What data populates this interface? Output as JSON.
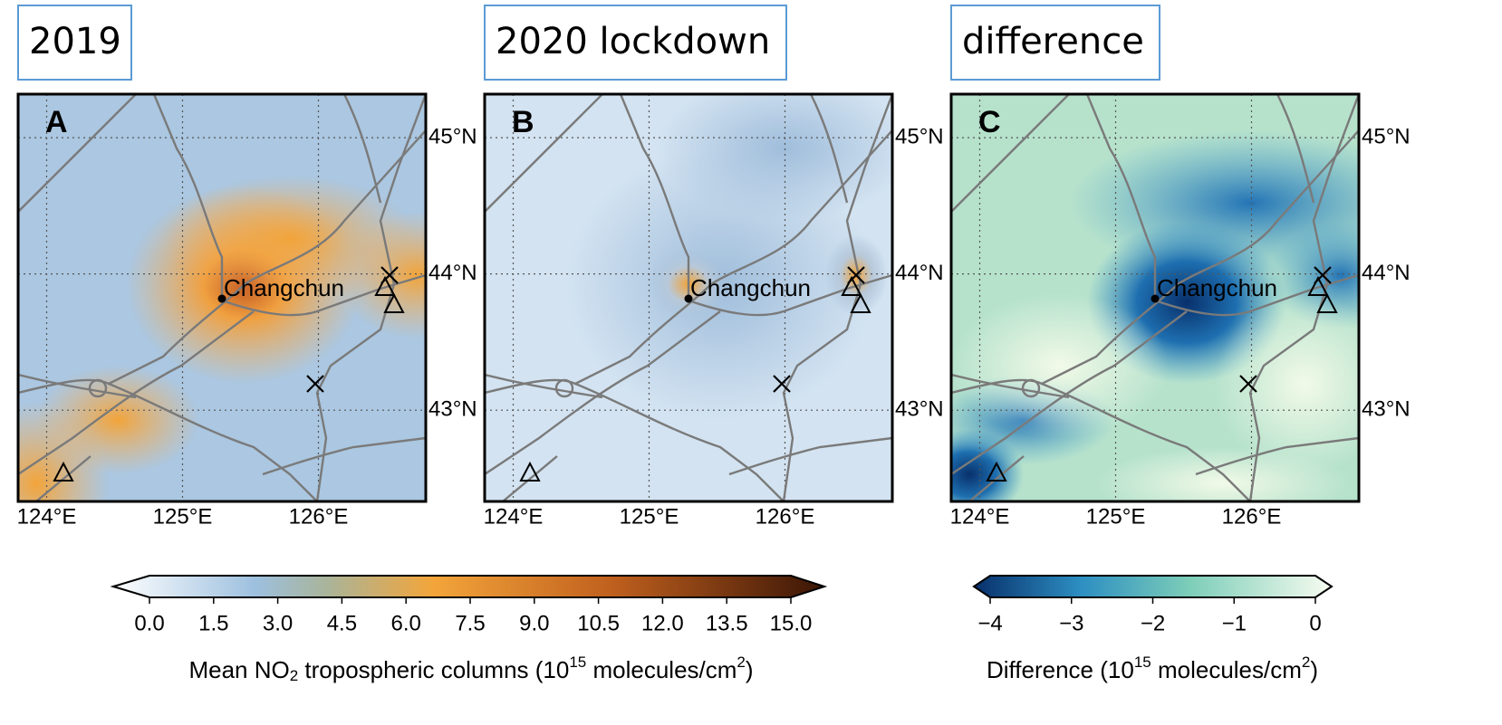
{
  "panels": [
    {
      "header": "2019",
      "letter": "A"
    },
    {
      "header": "2020 lockdown",
      "letter": "B"
    },
    {
      "header": "difference",
      "letter": "C"
    }
  ],
  "city": "Changchun",
  "lon": {
    "range": [
      123.79,
      126.79
    ],
    "ticks": [
      {
        "value": 124,
        "label": "124°E"
      },
      {
        "value": 125,
        "label": "125°E"
      },
      {
        "value": 126,
        "label": "126°E"
      }
    ]
  },
  "lat": {
    "range": [
      42.33,
      45.32
    ],
    "ticks": [
      {
        "value": 45,
        "label": "45°N"
      },
      {
        "value": 44,
        "label": "44°N"
      },
      {
        "value": 43,
        "label": "43°N"
      }
    ]
  },
  "colorbars": [
    {
      "limits": [
        0,
        15
      ],
      "ticks": [
        {
          "value": 0,
          "label": "0.0"
        },
        {
          "value": 1.5,
          "label": "1.5"
        },
        {
          "value": 3,
          "label": "3.0"
        },
        {
          "value": 4.5,
          "label": "4.5"
        },
        {
          "value": 6,
          "label": "6.0"
        },
        {
          "value": 7.5,
          "label": "7.5"
        },
        {
          "value": 9,
          "label": "9.0"
        },
        {
          "value": 10.5,
          "label": "10.5"
        },
        {
          "value": 12,
          "label": "12.0"
        },
        {
          "value": 13.5,
          "label": "13.5"
        },
        {
          "value": 15,
          "label": "15.0"
        }
      ],
      "label": [
        "Mean NO",
        "2",
        " tropospheric columns (10",
        "15",
        " molecules/cm",
        "2",
        ")"
      ]
    },
    {
      "limits": [
        -4,
        0
      ],
      "ticks": [
        {
          "value": -4,
          "label": "−4"
        },
        {
          "value": -3,
          "label": "−3"
        },
        {
          "value": -2,
          "label": "−2"
        },
        {
          "value": -1,
          "label": "−1"
        },
        0
      ],
      "label": [
        "Difference (10",
        "15",
        " molecules/cm",
        "2",
        ")"
      ]
    }
  ]
}
